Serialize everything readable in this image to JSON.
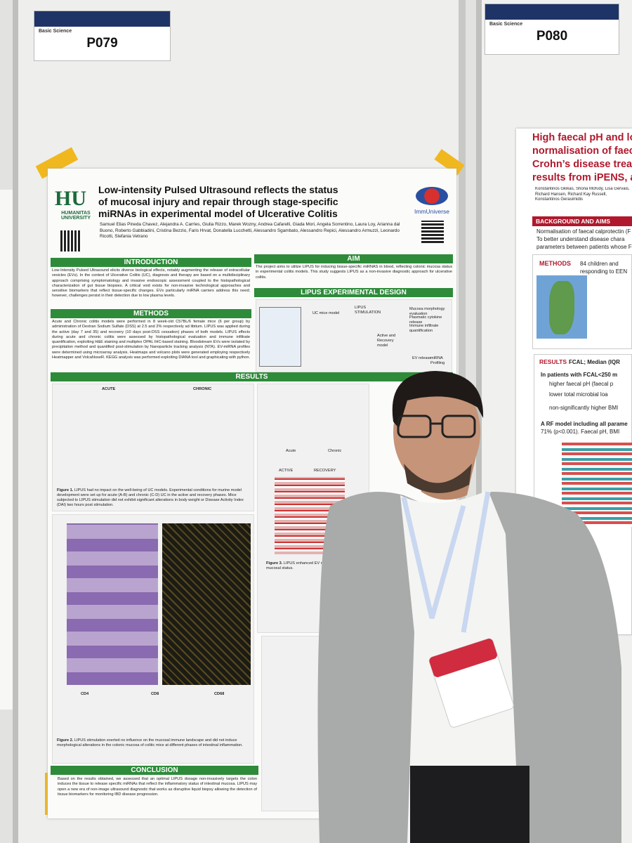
{
  "posters": [
    {
      "section": "Basic Science",
      "code": "P079",
      "institution": "HUMANITAS UNIVERSITY",
      "partner": "ImmUniverse",
      "title": [
        "Low-intensity Pulsed Ultrasound reflects the status",
        "of mucosal injury and repair through stage-specific",
        "miRNAs in experimental model of Ulcerative Colitis"
      ],
      "authors": "Samuel Elias Pineda Chavez, Alejandra A. Carrles, Giulia Rizzo, Marek Wozny, Andrea Cafarelli, Giada Mori, Angela Sorrentino, Laura Loy, Arianna dal Buono, Roberto Gabbiadini, Cristina Bezzio, Faris Hrvat, Donatella Lucchetti, Alessandro Sgambato, Alessandro Repici, Alessandro Armuzzi, Leonardo Ricotti, Stefania Vetrano",
      "introduction": {
        "heading": "INTRODUCTION",
        "text": "Low-Intensity Pulsed Ultrasound elicits diverse biological effects, notably augmenting the release of extracellular vesicles (EVs). In the context of Ulcerative Colitis (UC), diagnosis and therapy are based on a multidisciplinary approach comprising symptomatology and invasive endoscopic assessment coupled to the histopathological characterization of gut tissue biopsies. A critical void exists for non-invasive technological approaches and sensitive biomarkers that reflect tissue-specific changes. EVs particularly miRNA carriers address this need; however, challenges persist in their detection due to low plasma levels."
      },
      "methods": {
        "heading": "METHODS",
        "text": "Acute and Chronic colitis models were performed in 8 week-old C57BL/6 female mice (6 per group) by administration of Dextran Sodium Sulfate (DSS) at 2.5 and 2% respectively ad libitum. LIPUS was applied during the active (day 7 and 35) and recovery (10 days post-DSS cessation) phases of both models. LIPUS effects during acute and chronic colitis were assessed by histopathological evaluation and immune infiltrate quantification, exploiting H&E staining and multiplex OPAL IHC-based staining. Bloodstream EVs were isolated by precipitation method and quantified post-stimulation by Nanoparticle tracking analysis (NTA). EV-miRNA profiles were determined using microarray analysis. Heatmaps and volcano plots were generated employing respectively Heatmapper and VolcaNoseR. KEGG analysis was performed exploiting DIANA tool and graphicating with python."
      },
      "aim": {
        "heading": "AIM",
        "text": "The project aims to utilize LIPUS for inducing tissue-specific miRNAS in blood, reflecting colonic mucosa status in experimental colitis models. This study suggests LIPUS as a non-invasive diagnostic approach for ulcerative colitis."
      },
      "design": {
        "heading": "LIPUS EXPERIMENTAL DESIGN",
        "labels": [
          "UC mice model",
          "LIPUS STIMULATION",
          "Active and Recovery model",
          "Mucosa morphology evaluation",
          "Plasmatic cytokine release",
          "Immune infiltrate quantification",
          "EV release",
          "miRNA Profiling"
        ]
      },
      "results": {
        "heading": "RESULTS",
        "labels": [
          "ACUTE",
          "CHRONIC",
          "ACTIVE",
          "RECOVERY",
          "Acute",
          "Chronic",
          "CD4",
          "CD8",
          "CD68"
        ],
        "figures": [
          {
            "label": "Figure 1.",
            "text": "LIPUS had no impact on the well-being of UC models. Experimental conditions for murine model development were set up for acute (A-B) and chronic (C-D) UC in the active and recovery phases. Mice subjected to LIPUS stimulation did not exhibit significant alterations in body weight or Disease Activity Index (DAI) two hours post stimulation."
          },
          {
            "label": "Figure 2.",
            "text": "LIPUS stimulation exerted no influence on the mucosal immune landscape and did not induce morphological alterations in the colonic mucosa of colitic mice at different phases of intestinal inflammation."
          },
          {
            "label": "Figure 3.",
            "text": "LIPUS enhanced EV release regardless of mucosal status."
          }
        ]
      },
      "conclusion": {
        "heading": "CONCLUSION",
        "text": "Based on the results obtained, we assessed that an optimal LIPUS dosage non-invasively targets the colon induces the tissue to release specific miRNAs that reflect the inflammatory status of intestinal mucosa. LIPUS may open a new era of non-image ultrasound diagnostic that works as disruptive liquid biopsy allowing the detection of tissue biomarkers for monitoring IBD disease progression."
      }
    },
    {
      "section": "Basic Science",
      "code": "P080",
      "title": [
        "High faecal pH and lo",
        "normalisation of faec",
        "Crohn’s disease treat",
        "results from iPENS, a"
      ],
      "authors": "Konstantinos Gkikas, Shona McKidy, Lisa Gervais, Richard Hansen, Richard Kay Russell, Konstantinos Gerasimidis",
      "background": {
        "heading": "BACKGROUND AND AIMS",
        "items": [
          "Normalisation of faecal calprotectin (F",
          "To better understand disease chara",
          "parameters between patients whose F"
        ]
      },
      "methods": {
        "heading": "METHODS",
        "text": "84 children and",
        "text2": "responding to EEN"
      },
      "results": {
        "heading": "RESULTS",
        "subheading": "FCAL; Median (IQR",
        "intro": "In patients with FCAL<250 m",
        "items": [
          "higher faecal pH (faecal p",
          "lower total microbial loa",
          "non-significantly higher BMI"
        ],
        "note": "A RF model including all parame",
        "note2": "71% (p<0.001). Faecal pH, BMI"
      }
    }
  ]
}
